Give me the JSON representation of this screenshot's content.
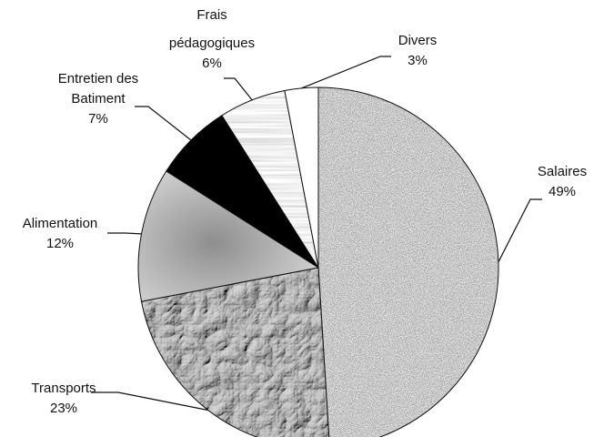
{
  "chart_data": {
    "type": "pie",
    "title": "",
    "slices": [
      {
        "label": "Salaires",
        "value": 49,
        "value_label": "49%"
      },
      {
        "label": "Transports",
        "value": 23,
        "value_label": "23%"
      },
      {
        "label": "Alimentation",
        "value": 12,
        "value_label": "12%"
      },
      {
        "label": "Entretien des Batiment",
        "label_lines": [
          "Entretien des",
          "Batiment"
        ],
        "value": 7,
        "value_label": "7%"
      },
      {
        "label": "Frais pédagogiques",
        "label_lines": [
          "Frais",
          "pédagogiques"
        ],
        "value": 6,
        "value_label": "6%"
      },
      {
        "label": "Divers",
        "value": 3,
        "value_label": "3%"
      }
    ],
    "legend": "none",
    "slice_fills": [
      "granite-speckle",
      "crumpled-paper",
      "gradient-gray",
      "#000000",
      "wood-grain",
      "#ffffff"
    ]
  }
}
